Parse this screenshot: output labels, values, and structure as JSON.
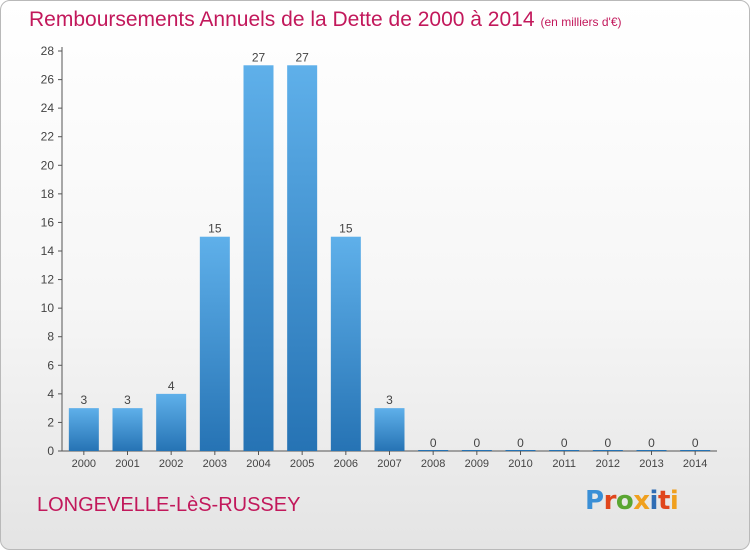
{
  "title": "Remboursements Annuels de la Dette de 2000 à 2014",
  "unit_note": "(en milliers d'€)",
  "commune": "LONGEVELLE-LèS-RUSSEY",
  "brand": {
    "text": "Proxiti",
    "letters": [
      "P",
      "r",
      "o",
      "x",
      "i",
      "t",
      "i"
    ],
    "colors": [
      "#3a8fd6",
      "#e0461c",
      "#5aa632",
      "#f0a01e",
      "#2f6db5",
      "#e0461c",
      "#f0a01e"
    ]
  },
  "colors": {
    "title": "#c2185b",
    "bar_top": "#5fb0ea",
    "bar_bottom": "#2673b4",
    "axis_labels": "#444444"
  },
  "chart_data": {
    "type": "bar",
    "title": "Remboursements Annuels de la Dette de 2000 à 2014",
    "categories": [
      "2000",
      "2001",
      "2002",
      "2003",
      "2004",
      "2005",
      "2006",
      "2007",
      "2008",
      "2009",
      "2010",
      "2011",
      "2012",
      "2013",
      "2014"
    ],
    "values": [
      3,
      3,
      4,
      15,
      27,
      27,
      15,
      3,
      0,
      0,
      0,
      0,
      0,
      0,
      0
    ],
    "ylim": [
      0,
      28
    ],
    "yticks": [
      0,
      2,
      4,
      6,
      8,
      10,
      12,
      14,
      16,
      18,
      20,
      22,
      24,
      26,
      28
    ],
    "grid": false,
    "data_labels": true
  }
}
